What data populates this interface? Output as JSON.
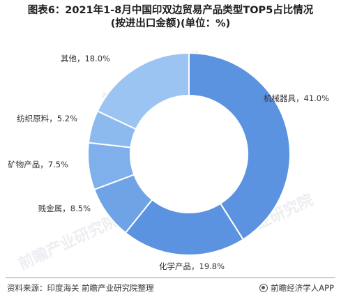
{
  "title": {
    "line1": "图表6：2021年1-8月中国印双边贸易产品类型TOP5占比情况",
    "line2": "(按进出口金额)(单位：%)"
  },
  "watermark": "前瞻产业研究院",
  "footer": {
    "source": "资料来源：印度海关 前瞻产业研究院整理",
    "brand": "前瞻经济学人APP"
  },
  "colors": {
    "机械器具": "#5b93e0",
    "化学产品": "#5b93e0",
    "贱金属": "#6ea3e6",
    "矿物产品": "#7fb0eb",
    "纺织原料": "#8dbaee",
    "其他": "#9cc4f2"
  },
  "chart_data": {
    "type": "pie",
    "donut": true,
    "title": "图表6：2021年1-8月中国印双边贸易产品类型TOP5占比情况(按进出口金额)(单位：%)",
    "slices": [
      {
        "name": "机械器具",
        "value": 41.0,
        "label": "机械器具，41.0%"
      },
      {
        "name": "化学产品",
        "value": 19.8,
        "label": "化学产品，19.8%"
      },
      {
        "name": "贱金属",
        "value": 8.5,
        "label": "贱金属，8.5%"
      },
      {
        "name": "矿物产品",
        "value": 7.5,
        "label": "矿物产品，7.5%"
      },
      {
        "name": "纺织原料",
        "value": 5.2,
        "label": "纺织原料，5.2%"
      },
      {
        "name": "其他",
        "value": 18.0,
        "label": "其他，18.0%"
      }
    ]
  }
}
